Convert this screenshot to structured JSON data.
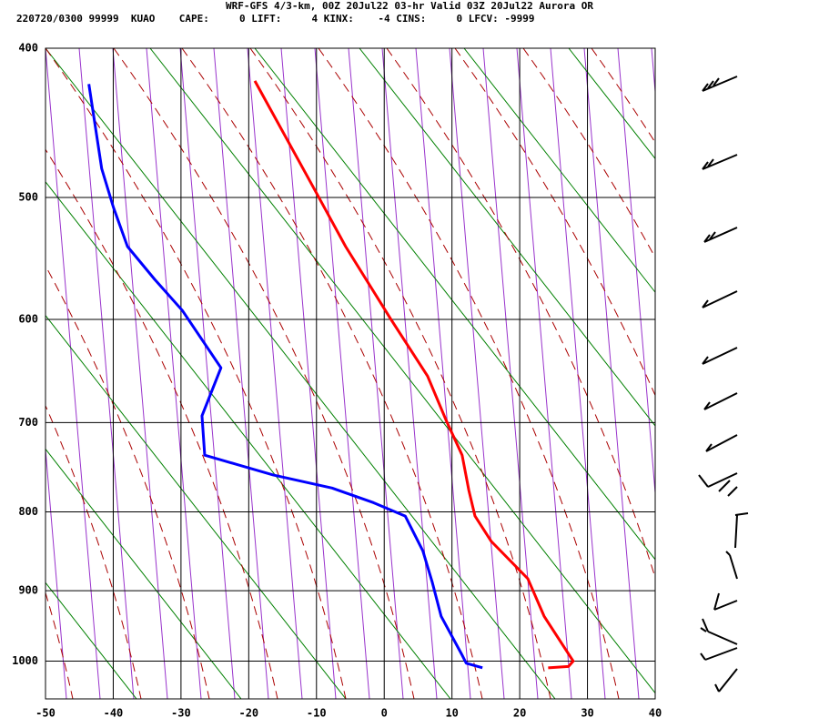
{
  "chart_data": {
    "type": "line",
    "title": "WRF-GFS 4/3-km, 00Z 20Jul22 03-hr Valid 03Z 20Jul22 Aurora OR",
    "subtitle": "220720/0300 99999  KUAO    CAPE:     0 LIFT:     4 KINX:    -4 CINS:     0 LFCV: -9999",
    "y_log_scale": true,
    "grid": true,
    "xlim": [
      -50,
      40
    ],
    "xticks": [
      -50,
      -40,
      -30,
      -20,
      -10,
      0,
      10,
      20,
      30,
      40
    ],
    "ylim": [
      400,
      1058
    ],
    "yticks": [
      400,
      500,
      600,
      700,
      800,
      900,
      1000
    ],
    "series": [
      {
        "color": "#ff0000",
        "x": [
          -19.1,
          -10.4,
          -5.7,
          1.0,
          6.4,
          9.1,
          11.5,
          12.5,
          13.4,
          15.8,
          21.2,
          23.6,
          27.9,
          27.2,
          24.2
        ],
        "values": [
          420,
          493,
          538,
          600,
          653,
          697,
          735,
          775,
          805,
          836,
          884,
          935,
          1000,
          1008,
          1010
        ]
      },
      {
        "color": "#0000ff",
        "x": [
          -43.6,
          -41.7,
          -40.0,
          -37.9,
          -33.9,
          -29.8,
          -24.1,
          -26.9,
          -26.5,
          -16.4,
          -7.7,
          -1.6,
          3.1,
          5.7,
          7.1,
          8.4,
          11.5,
          12.1,
          14.5
        ],
        "values": [
          422,
          479,
          507,
          538,
          565,
          592,
          645,
          693,
          735,
          757,
          772,
          789,
          805,
          848,
          889,
          935,
          991,
          1003,
          1010
        ]
      }
    ]
  }
}
